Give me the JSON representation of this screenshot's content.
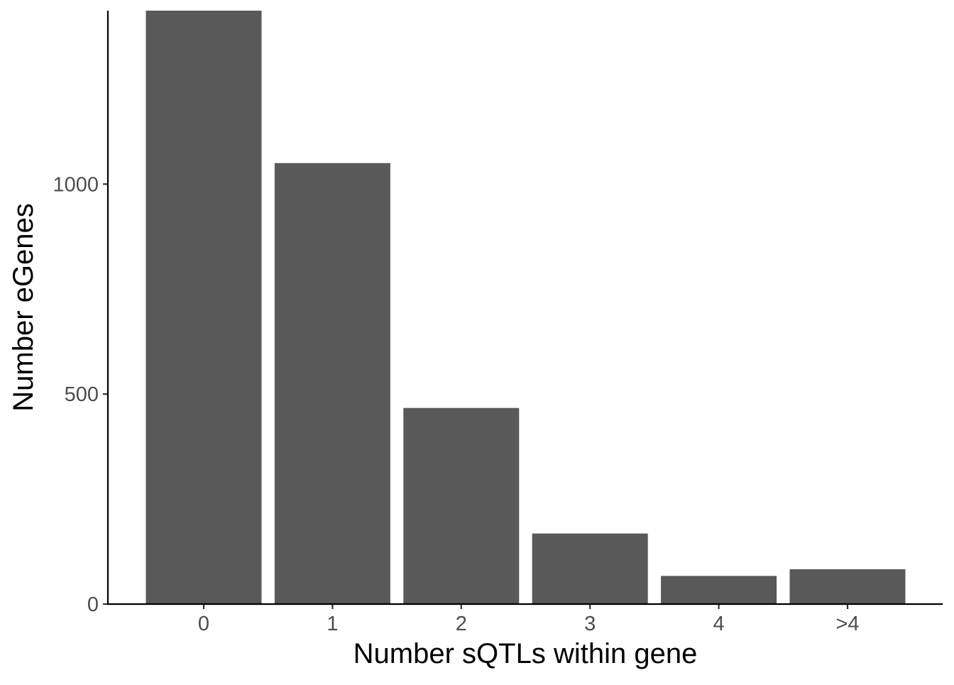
{
  "chart_data": {
    "type": "bar",
    "title": "",
    "xlabel": "Number sQTLs within gene",
    "ylabel": "Number eGenes",
    "categories": [
      "0",
      "1",
      "2",
      "3",
      "4",
      ">4"
    ],
    "values": [
      1420,
      1050,
      467,
      168,
      67,
      83
    ],
    "ylim": [
      0,
      1413
    ],
    "yticks": [
      0,
      500,
      1000
    ],
    "ytick_labels": [
      "0",
      "500",
      "1000"
    ],
    "grid": false,
    "legend": "none",
    "bar_color": "#595959"
  }
}
